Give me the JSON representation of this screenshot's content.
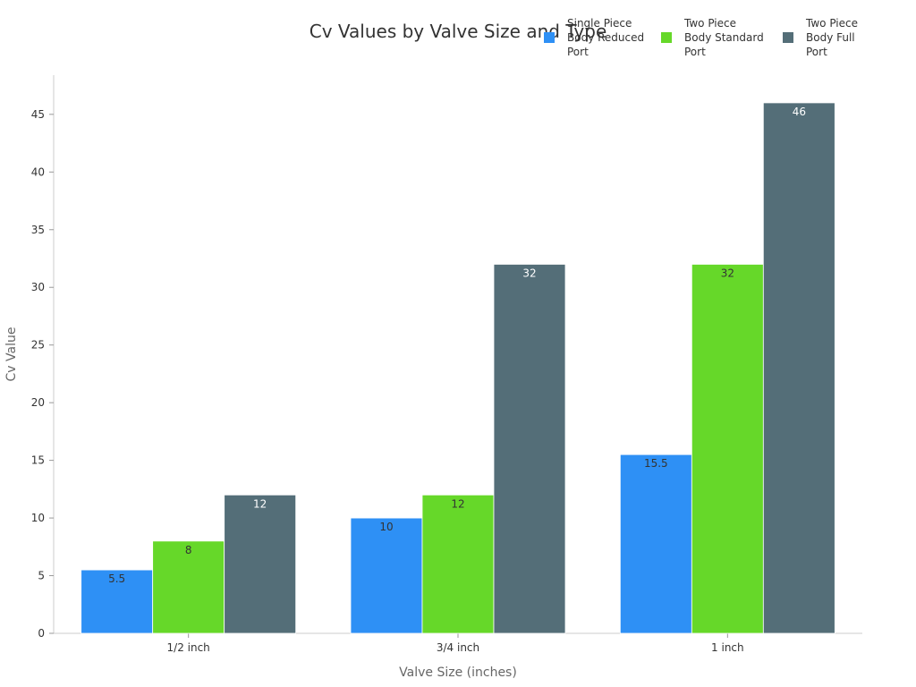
{
  "chart_data": {
    "type": "bar",
    "title": "Cv Values by Valve Size and Type",
    "xlabel": "Valve Size (inches)",
    "ylabel": "Cv Value",
    "categories": [
      "1/2 inch",
      "3/4 inch",
      "1 inch"
    ],
    "ylim": [
      0,
      48.4
    ],
    "yticks": [
      0,
      5,
      10,
      15,
      20,
      25,
      30,
      35,
      40,
      45
    ],
    "grid": false,
    "legend_position": "top-right",
    "series": [
      {
        "name": "Single Piece Body Reduced Port",
        "legend_lines": [
          "Single Piece",
          "Body Reduced",
          "Port"
        ],
        "color": "#2e90f5",
        "label_color": "#333333",
        "values": [
          5.5,
          10,
          15.5
        ],
        "value_labels": [
          "5.5",
          "10",
          "15.5"
        ]
      },
      {
        "name": "Two Piece Body Standard Port",
        "legend_lines": [
          "Two Piece",
          "Body Standard",
          "Port"
        ],
        "color": "#66d829",
        "label_color": "#333333",
        "values": [
          8,
          12,
          32
        ],
        "value_labels": [
          "8",
          "12",
          "32"
        ]
      },
      {
        "name": "Two Piece Body Full Port",
        "legend_lines": [
          "Two Piece",
          "Body Full",
          "Port"
        ],
        "color": "#546e78",
        "label_color": "#ffffff",
        "values": [
          12,
          32,
          46
        ],
        "value_labels": [
          "12",
          "32",
          "46"
        ]
      }
    ]
  }
}
